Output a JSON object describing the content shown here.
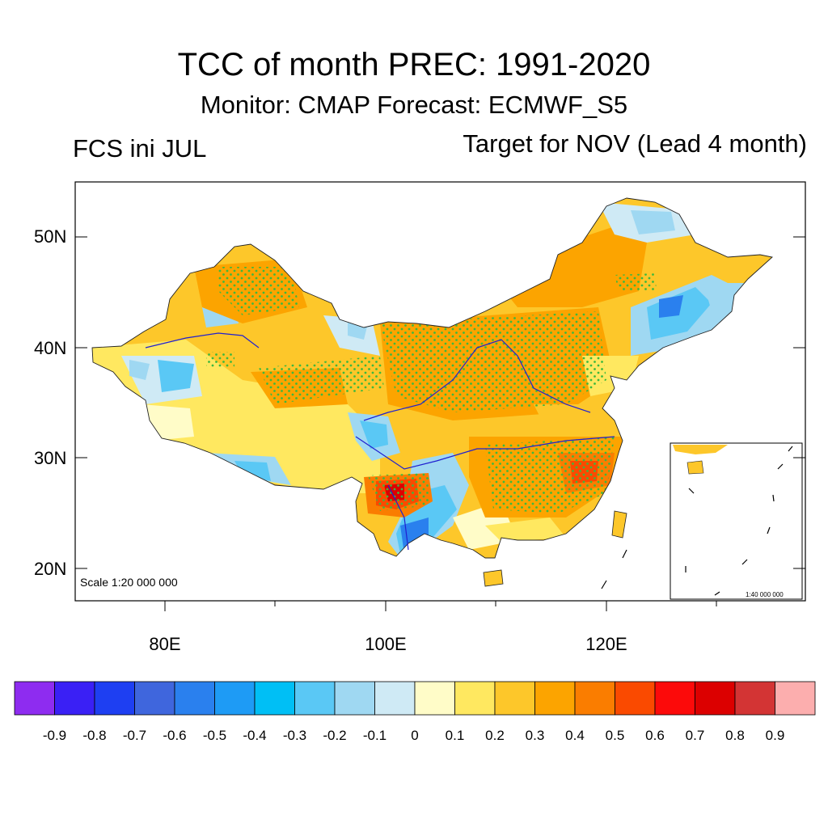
{
  "title": "TCC of month PREC: 1991-2020",
  "subtitle": "Monitor: CMAP   Forecast: ECMWF_S5",
  "left_label": "FCS ini JUL",
  "right_label": "Target for NOV (Lead 4 month)",
  "scale_label": "Scale 1:20 000 000",
  "inset_scale_label": "1:40 000 000",
  "axes": {
    "lon_ticks": [
      "80E",
      "100E",
      "120E"
    ],
    "lat_ticks": [
      "50N",
      "40N",
      "30N",
      "20N"
    ]
  },
  "colorbar": {
    "colors": [
      "#8e2cf0",
      "#3a20f5",
      "#1e3ff2",
      "#3f66dd",
      "#2a80ee",
      "#1e9bf5",
      "#00bff5",
      "#5ac8f5",
      "#9fd8f2",
      "#cfeaf5",
      "#fffcc8",
      "#ffe860",
      "#fdc72a",
      "#fca400",
      "#fa7d00",
      "#fa4a00",
      "#fc0a0a",
      "#dc0000",
      "#d33434",
      "#fcaeae"
    ],
    "labels": [
      "-0.9",
      "-0.8",
      "-0.7",
      "-0.6",
      "-0.5",
      "-0.4",
      "-0.3",
      "-0.2",
      "-0.1",
      "0",
      "0.1",
      "0.2",
      "0.3",
      "0.4",
      "0.5",
      "0.6",
      "0.7",
      "0.8",
      "0.9"
    ]
  }
}
